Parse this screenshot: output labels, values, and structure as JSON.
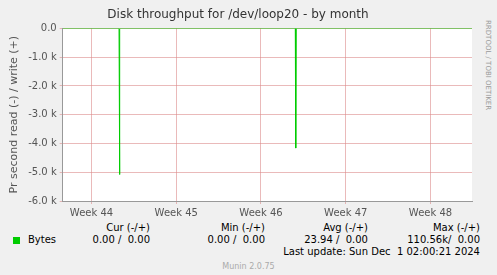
{
  "chart_data": {
    "type": "line",
    "title": "Disk throughput for /dev/loop20 - by month",
    "y_label": "Pr second read (-) / write (+)",
    "x": [
      43.66,
      44.325,
      44.33,
      44.335,
      46.405,
      46.41,
      46.415,
      48.49
    ],
    "series": [
      {
        "name": "Bytes",
        "color": "#00cc00",
        "values": [
          0,
          0,
          -5080,
          0,
          0,
          -4160,
          0,
          0
        ]
      }
    ],
    "xlim": [
      43.66,
      48.49
    ],
    "xticks": [
      {
        "value": 44,
        "label": "Week 44"
      },
      {
        "value": 45,
        "label": "Week 45"
      },
      {
        "value": 46,
        "label": "Week 46"
      },
      {
        "value": 47,
        "label": "Week 47"
      },
      {
        "value": 48,
        "label": "Week 48"
      }
    ],
    "ylim": [
      -6000,
      0
    ],
    "yticks": [
      {
        "value": -6000,
        "label": "-6.0 k"
      },
      {
        "value": -5000,
        "label": "-5.0 k"
      },
      {
        "value": -4000,
        "label": "-4.0 k"
      },
      {
        "value": -3000,
        "label": "-3.0 k"
      },
      {
        "value": -2000,
        "label": "-2.0 k"
      },
      {
        "value": -1000,
        "label": "-1.0 k"
      },
      {
        "value": 0,
        "label": "0.0"
      }
    ],
    "grid": true
  },
  "legend_table": {
    "columns": [
      "Cur (-/+)",
      "Min (-/+)",
      "Avg (-/+)",
      "Max (-/+)"
    ],
    "rows": [
      [
        "0.00 /  0.00",
        "0.00 /  0.00",
        "23.94 /  0.00",
        "110.56k/  0.00"
      ]
    ]
  },
  "last_update": "Last update: Sun Dec  1 02:00:21 2024",
  "footer": "Munin 2.0.75",
  "watermark": "RRDTOOL / TOBI OETIKER"
}
